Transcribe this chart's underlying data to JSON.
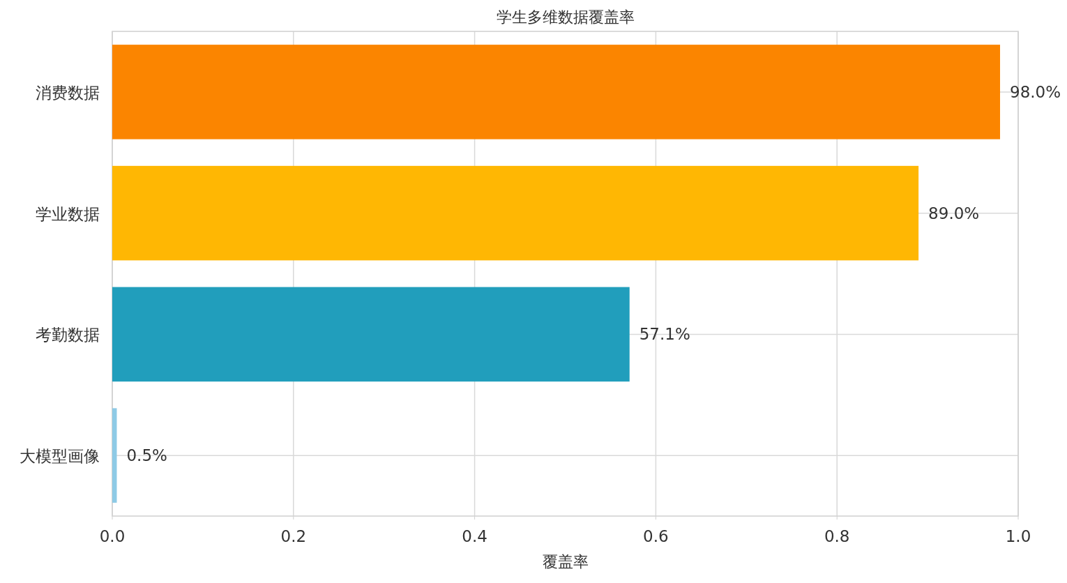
{
  "chart_data": {
    "type": "bar",
    "orientation": "horizontal",
    "title": "学生多维数据覆盖率",
    "xlabel": "覆盖率",
    "categories": [
      "消费数据",
      "学业数据",
      "考勤数据",
      "大模型画像"
    ],
    "values": [
      0.98,
      0.89,
      0.571,
      0.005
    ],
    "value_labels": [
      "98.0%",
      "89.0%",
      "57.1%",
      "0.5%"
    ],
    "colors": [
      "#fb8500",
      "#ffb703",
      "#219ebc",
      "#8ecae6"
    ],
    "xlim": [
      0,
      1
    ],
    "xticks": [
      {
        "value": 0,
        "label": "0.0"
      },
      0.2,
      0.4,
      0.6,
      0.8,
      {
        "value": 1,
        "label": "1.0"
      }
    ],
    "grid": true
  }
}
